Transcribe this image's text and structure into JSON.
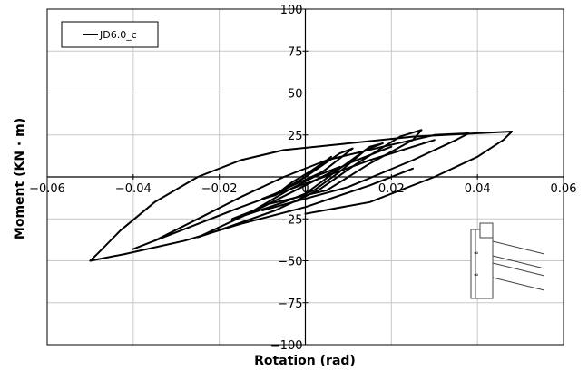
{
  "chart_data": {
    "type": "line",
    "xlabel": "Rotation (rad)",
    "ylabel": "Moment (KN · m)",
    "xlim": [
      -0.06,
      0.06
    ],
    "ylim": [
      -100,
      100
    ],
    "x_ticks": [
      -0.06,
      -0.04,
      -0.02,
      0,
      0.02,
      0.04,
      0.06
    ],
    "x_tick_labels": [
      "−0.06",
      "−0.04",
      "−0.02",
      "0",
      "0.02",
      "0.04",
      "0.06"
    ],
    "y_ticks": [
      -100,
      -75,
      -50,
      -25,
      0,
      25,
      50,
      75,
      100
    ],
    "y_tick_labels": [
      "−100",
      "−75",
      "−50",
      "−25",
      "0",
      "25",
      "50",
      "75",
      "100"
    ],
    "grid": true,
    "legend": {
      "placement": "top-left",
      "entries": [
        "JD6.0_c"
      ]
    },
    "series": [
      {
        "name": "JD6.0_c",
        "color": "#000000",
        "loops": [
          [
            [
              0,
              0
            ],
            [
              0.004,
              8
            ],
            [
              0.006,
              12
            ],
            [
              0.005,
              10
            ],
            [
              0.001,
              3
            ],
            [
              -0.003,
              -3
            ],
            [
              -0.005,
              -7
            ],
            [
              -0.006,
              -9
            ],
            [
              -0.004,
              -6
            ],
            [
              0,
              0
            ]
          ],
          [
            [
              0,
              0
            ],
            [
              0.008,
              14
            ],
            [
              0.011,
              17
            ],
            [
              0.009,
              13
            ],
            [
              0.004,
              3
            ],
            [
              -0.002,
              -4
            ],
            [
              -0.007,
              -10
            ],
            [
              -0.01,
              -13
            ],
            [
              -0.007,
              -11
            ],
            [
              0,
              0
            ]
          ],
          [
            [
              0,
              -10
            ],
            [
              0.008,
              5
            ],
            [
              0.015,
              18
            ],
            [
              0.018,
              20
            ],
            [
              0.014,
              16
            ],
            [
              0.008,
              3
            ],
            [
              0.002,
              -8
            ],
            [
              -0.005,
              -15
            ],
            [
              -0.013,
              -22
            ],
            [
              -0.017,
              -25
            ],
            [
              -0.012,
              -20
            ],
            [
              -0.004,
              -8
            ],
            [
              0.002,
              0
            ],
            [
              0.008,
              6
            ]
          ],
          [
            [
              -0.01,
              -17
            ],
            [
              0.005,
              -8
            ],
            [
              0.015,
              8
            ],
            [
              0.025,
              22
            ],
            [
              0.027,
              28
            ],
            [
              0.022,
              24
            ],
            [
              0.012,
              8
            ],
            [
              0.003,
              -8
            ],
            [
              -0.007,
              -20
            ],
            [
              -0.018,
              -30
            ],
            [
              -0.025,
              -36
            ],
            [
              -0.02,
              -30
            ],
            [
              -0.01,
              -18
            ],
            [
              0,
              -5
            ],
            [
              0.01,
              8
            ],
            [
              0.02,
              18
            ]
          ],
          [
            [
              -0.01,
              -20
            ],
            [
              0.01,
              -6
            ],
            [
              0.025,
              10
            ],
            [
              0.035,
              22
            ],
            [
              0.038,
              26
            ],
            [
              0.03,
              25
            ],
            [
              0.018,
              18
            ],
            [
              0.005,
              10
            ],
            [
              -0.005,
              0
            ],
            [
              -0.015,
              -12
            ],
            [
              -0.025,
              -25
            ],
            [
              -0.035,
              -38
            ],
            [
              -0.04,
              -43
            ],
            [
              -0.03,
              -33
            ],
            [
              -0.015,
              -18
            ],
            [
              0,
              -4
            ],
            [
              0.015,
              10
            ],
            [
              0.03,
              22
            ]
          ],
          [
            [
              0,
              -22
            ],
            [
              0.015,
              -15
            ],
            [
              0.03,
              0
            ],
            [
              0.04,
              12
            ],
            [
              0.046,
              22
            ],
            [
              0.048,
              27
            ],
            [
              0.04,
              26
            ],
            [
              0.025,
              24
            ],
            [
              0.01,
              20
            ],
            [
              -0.005,
              16
            ],
            [
              -0.015,
              10
            ],
            [
              -0.025,
              0
            ],
            [
              -0.035,
              -15
            ],
            [
              -0.043,
              -32
            ],
            [
              -0.048,
              -45
            ],
            [
              -0.05,
              -50
            ],
            [
              -0.042,
              -46
            ],
            [
              -0.028,
              -38
            ],
            [
              -0.015,
              -28
            ],
            [
              0,
              -18
            ],
            [
              0.015,
              -5
            ],
            [
              0.025,
              5
            ]
          ]
        ]
      }
    ]
  },
  "inset": {
    "icon": "column-beam-joint-icon",
    "bolt_label": "∞"
  }
}
